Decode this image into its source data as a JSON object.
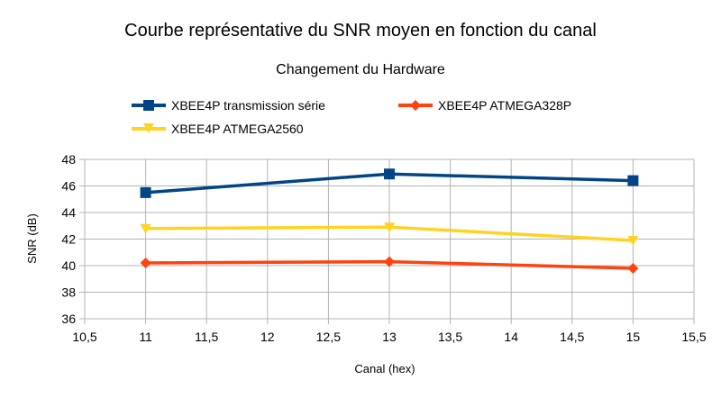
{
  "chart_data": {
    "type": "line",
    "title": "Courbe représentative du SNR moyen en fonction du canal",
    "subtitle": "Changement du Hardware",
    "xlabel": "Canal (hex)",
    "ylabel": "SNR (dB)",
    "xlim": [
      10.5,
      15.5
    ],
    "ylim": [
      36,
      48
    ],
    "x_ticks": [
      10.5,
      11,
      11.5,
      12,
      12.5,
      13,
      13.5,
      14,
      14.5,
      15,
      15.5
    ],
    "x_tick_labels": [
      "10,5",
      "11",
      "11,5",
      "12",
      "12,5",
      "13",
      "13,5",
      "14",
      "14,5",
      "15",
      "15,5"
    ],
    "y_ticks": [
      36,
      38,
      40,
      42,
      44,
      46,
      48
    ],
    "y_tick_labels": [
      "36",
      "38",
      "40",
      "42",
      "44",
      "46",
      "48"
    ],
    "grid": true,
    "legend_position": "top",
    "series": [
      {
        "name": "XBEE4P transmission série",
        "color": "#004586",
        "marker": "square",
        "x": [
          11,
          13,
          15
        ],
        "y": [
          45.5,
          46.9,
          46.4
        ]
      },
      {
        "name": "XBEE4P ATMEGA328P",
        "color": "#ff420e",
        "marker": "diamond",
        "x": [
          11,
          13,
          15
        ],
        "y": [
          40.2,
          40.3,
          39.8
        ]
      },
      {
        "name": "XBEE4P ATMEGA2560",
        "color": "#ffd320",
        "marker": "triangle-down",
        "x": [
          11,
          13,
          15
        ],
        "y": [
          42.8,
          42.9,
          41.9
        ]
      }
    ]
  }
}
